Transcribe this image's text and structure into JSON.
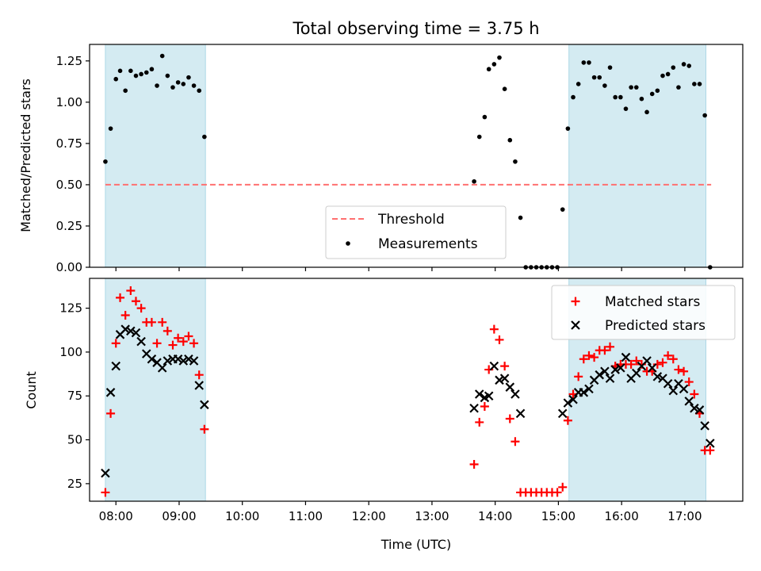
{
  "chart_data": [
    {
      "type": "scatter",
      "title": "Total observing time = 3.75 h",
      "xlabel": "",
      "ylabel": "Matched/Predicted stars",
      "xlim": [
        "07:35",
        "17:55"
      ],
      "ylim": [
        0,
        1.35
      ],
      "x_ticks": [
        "08:00",
        "09:00",
        "10:00",
        "11:00",
        "12:00",
        "13:00",
        "14:00",
        "15:00",
        "16:00",
        "17:00"
      ],
      "y_ticks": [
        "0.00",
        "0.25",
        "0.50",
        "0.75",
        "1.00",
        "1.25"
      ],
      "grid": false,
      "legend_placement": "lower-center",
      "shaded_intervals": [
        [
          "07:50",
          "09:25"
        ],
        [
          "15:10",
          "17:20"
        ]
      ],
      "shade_color": "#add8e6",
      "threshold": {
        "name": "Threshold",
        "y": 0.5,
        "x_range": [
          "07:50",
          "17:25"
        ],
        "color": "#ff7070"
      },
      "series": [
        {
          "name": "Measurements",
          "color": "#000000",
          "marker": "dot",
          "points": [
            [
              "07:50",
              0.64
            ],
            [
              "07:55",
              0.84
            ],
            [
              "08:00",
              1.14
            ],
            [
              "08:04",
              1.19
            ],
            [
              "08:09",
              1.07
            ],
            [
              "08:14",
              1.19
            ],
            [
              "08:19",
              1.16
            ],
            [
              "08:24",
              1.17
            ],
            [
              "08:29",
              1.18
            ],
            [
              "08:34",
              1.2
            ],
            [
              "08:39",
              1.1
            ],
            [
              "08:44",
              1.28
            ],
            [
              "08:49",
              1.16
            ],
            [
              "08:54",
              1.09
            ],
            [
              "08:59",
              1.12
            ],
            [
              "09:04",
              1.11
            ],
            [
              "09:09",
              1.15
            ],
            [
              "09:14",
              1.1
            ],
            [
              "09:19",
              1.07
            ],
            [
              "09:24",
              0.79
            ],
            [
              "13:40",
              0.52
            ],
            [
              "13:45",
              0.79
            ],
            [
              "13:50",
              0.91
            ],
            [
              "13:54",
              1.2
            ],
            [
              "13:59",
              1.23
            ],
            [
              "14:04",
              1.27
            ],
            [
              "14:09",
              1.08
            ],
            [
              "14:14",
              0.77
            ],
            [
              "14:19",
              0.64
            ],
            [
              "14:24",
              0.3
            ],
            [
              "14:29",
              0.0
            ],
            [
              "14:34",
              0.0
            ],
            [
              "14:39",
              0.0
            ],
            [
              "14:44",
              0.0
            ],
            [
              "14:49",
              0.0
            ],
            [
              "14:54",
              0.0
            ],
            [
              "14:59",
              0.0
            ],
            [
              "15:04",
              0.35
            ],
            [
              "15:09",
              0.84
            ],
            [
              "15:14",
              1.03
            ],
            [
              "15:19",
              1.11
            ],
            [
              "15:24",
              1.24
            ],
            [
              "15:29",
              1.24
            ],
            [
              "15:34",
              1.15
            ],
            [
              "15:39",
              1.15
            ],
            [
              "15:44",
              1.1
            ],
            [
              "15:49",
              1.21
            ],
            [
              "15:54",
              1.03
            ],
            [
              "15:59",
              1.03
            ],
            [
              "16:04",
              0.96
            ],
            [
              "16:09",
              1.09
            ],
            [
              "16:14",
              1.09
            ],
            [
              "16:19",
              1.02
            ],
            [
              "16:24",
              0.94
            ],
            [
              "16:29",
              1.05
            ],
            [
              "16:34",
              1.07
            ],
            [
              "16:39",
              1.16
            ],
            [
              "16:44",
              1.17
            ],
            [
              "16:49",
              1.21
            ],
            [
              "16:54",
              1.09
            ],
            [
              "16:59",
              1.23
            ],
            [
              "17:04",
              1.22
            ],
            [
              "17:09",
              1.11
            ],
            [
              "17:14",
              1.11
            ],
            [
              "17:19",
              0.92
            ],
            [
              "17:24",
              0.0
            ]
          ]
        }
      ]
    },
    {
      "type": "scatter",
      "title": "",
      "xlabel": "Time (UTC)",
      "ylabel": "Count",
      "xlim": [
        "07:35",
        "17:55"
      ],
      "ylim": [
        15,
        142
      ],
      "x_ticks": [
        "08:00",
        "09:00",
        "10:00",
        "11:00",
        "12:00",
        "13:00",
        "14:00",
        "15:00",
        "16:00",
        "17:00"
      ],
      "y_ticks": [
        "25",
        "50",
        "75",
        "100",
        "125"
      ],
      "grid": false,
      "legend_placement": "upper-right",
      "shaded_intervals": [
        [
          "07:50",
          "09:25"
        ],
        [
          "15:10",
          "17:20"
        ]
      ],
      "shade_color": "#add8e6",
      "series": [
        {
          "name": "Matched stars",
          "color": "#ff0000",
          "marker": "plus",
          "points": [
            [
              "07:50",
              20
            ],
            [
              "07:55",
              65
            ],
            [
              "08:00",
              105
            ],
            [
              "08:04",
              131
            ],
            [
              "08:09",
              121
            ],
            [
              "08:14",
              135
            ],
            [
              "08:19",
              129
            ],
            [
              "08:24",
              125
            ],
            [
              "08:29",
              117
            ],
            [
              "08:34",
              117
            ],
            [
              "08:39",
              105
            ],
            [
              "08:44",
              117
            ],
            [
              "08:49",
              112
            ],
            [
              "08:54",
              104
            ],
            [
              "08:59",
              108
            ],
            [
              "09:04",
              106
            ],
            [
              "09:09",
              109
            ],
            [
              "09:14",
              105
            ],
            [
              "09:19",
              87
            ],
            [
              "09:24",
              56
            ],
            [
              "13:40",
              36
            ],
            [
              "13:45",
              60
            ],
            [
              "13:50",
              69
            ],
            [
              "13:54",
              90
            ],
            [
              "13:59",
              113
            ],
            [
              "14:04",
              107
            ],
            [
              "14:09",
              92
            ],
            [
              "14:14",
              62
            ],
            [
              "14:19",
              49
            ],
            [
              "14:24",
              20
            ],
            [
              "14:29",
              20
            ],
            [
              "14:34",
              20
            ],
            [
              "14:39",
              20
            ],
            [
              "14:44",
              20
            ],
            [
              "14:49",
              20
            ],
            [
              "14:54",
              20
            ],
            [
              "14:59",
              20
            ],
            [
              "15:04",
              23
            ],
            [
              "15:09",
              61
            ],
            [
              "15:14",
              76
            ],
            [
              "15:19",
              86
            ],
            [
              "15:24",
              96
            ],
            [
              "15:29",
              98
            ],
            [
              "15:34",
              97
            ],
            [
              "15:39",
              101
            ],
            [
              "15:44",
              101
            ],
            [
              "15:49",
              103
            ],
            [
              "15:54",
              92
            ],
            [
              "15:59",
              93
            ],
            [
              "16:04",
              93
            ],
            [
              "16:09",
              93
            ],
            [
              "16:14",
              95
            ],
            [
              "16:19",
              93
            ],
            [
              "16:24",
              89
            ],
            [
              "16:29",
              89
            ],
            [
              "16:34",
              93
            ],
            [
              "16:39",
              94
            ],
            [
              "16:44",
              98
            ],
            [
              "16:49",
              96
            ],
            [
              "16:54",
              90
            ],
            [
              "16:59",
              89
            ],
            [
              "17:04",
              83
            ],
            [
              "17:09",
              76
            ],
            [
              "17:14",
              65
            ],
            [
              "17:19",
              44
            ],
            [
              "17:24",
              44
            ]
          ]
        },
        {
          "name": "Predicted stars",
          "color": "#000000",
          "marker": "cross",
          "points": [
            [
              "07:50",
              31
            ],
            [
              "07:55",
              77
            ],
            [
              "08:00",
              92
            ],
            [
              "08:04",
              110
            ],
            [
              "08:09",
              113
            ],
            [
              "08:14",
              112
            ],
            [
              "08:19",
              111
            ],
            [
              "08:24",
              106
            ],
            [
              "08:29",
              99
            ],
            [
              "08:34",
              96
            ],
            [
              "08:39",
              94
            ],
            [
              "08:44",
              91
            ],
            [
              "08:49",
              95
            ],
            [
              "08:54",
              96
            ],
            [
              "08:59",
              96
            ],
            [
              "09:04",
              95
            ],
            [
              "09:09",
              96
            ],
            [
              "09:14",
              95
            ],
            [
              "09:19",
              81
            ],
            [
              "09:24",
              70
            ],
            [
              "13:40",
              68
            ],
            [
              "13:45",
              76
            ],
            [
              "13:50",
              74
            ],
            [
              "13:54",
              75
            ],
            [
              "13:59",
              92
            ],
            [
              "14:04",
              84
            ],
            [
              "14:09",
              85
            ],
            [
              "14:14",
              80
            ],
            [
              "14:19",
              76
            ],
            [
              "14:24",
              65
            ],
            [
              "15:04",
              65
            ],
            [
              "15:09",
              71
            ],
            [
              "15:14",
              73
            ],
            [
              "15:19",
              77
            ],
            [
              "15:24",
              77
            ],
            [
              "15:29",
              79
            ],
            [
              "15:34",
              84
            ],
            [
              "15:39",
              87
            ],
            [
              "15:44",
              89
            ],
            [
              "15:49",
              85
            ],
            [
              "15:54",
              90
            ],
            [
              "15:59",
              91
            ],
            [
              "16:04",
              97
            ],
            [
              "16:09",
              85
            ],
            [
              "16:14",
              88
            ],
            [
              "16:19",
              92
            ],
            [
              "16:24",
              95
            ],
            [
              "16:29",
              91
            ],
            [
              "16:34",
              86
            ],
            [
              "16:39",
              85
            ],
            [
              "16:44",
              82
            ],
            [
              "16:49",
              78
            ],
            [
              "16:54",
              82
            ],
            [
              "16:59",
              79
            ],
            [
              "17:04",
              72
            ],
            [
              "17:09",
              68
            ],
            [
              "17:14",
              67
            ],
            [
              "17:19",
              58
            ],
            [
              "17:24",
              48
            ]
          ]
        }
      ]
    }
  ]
}
